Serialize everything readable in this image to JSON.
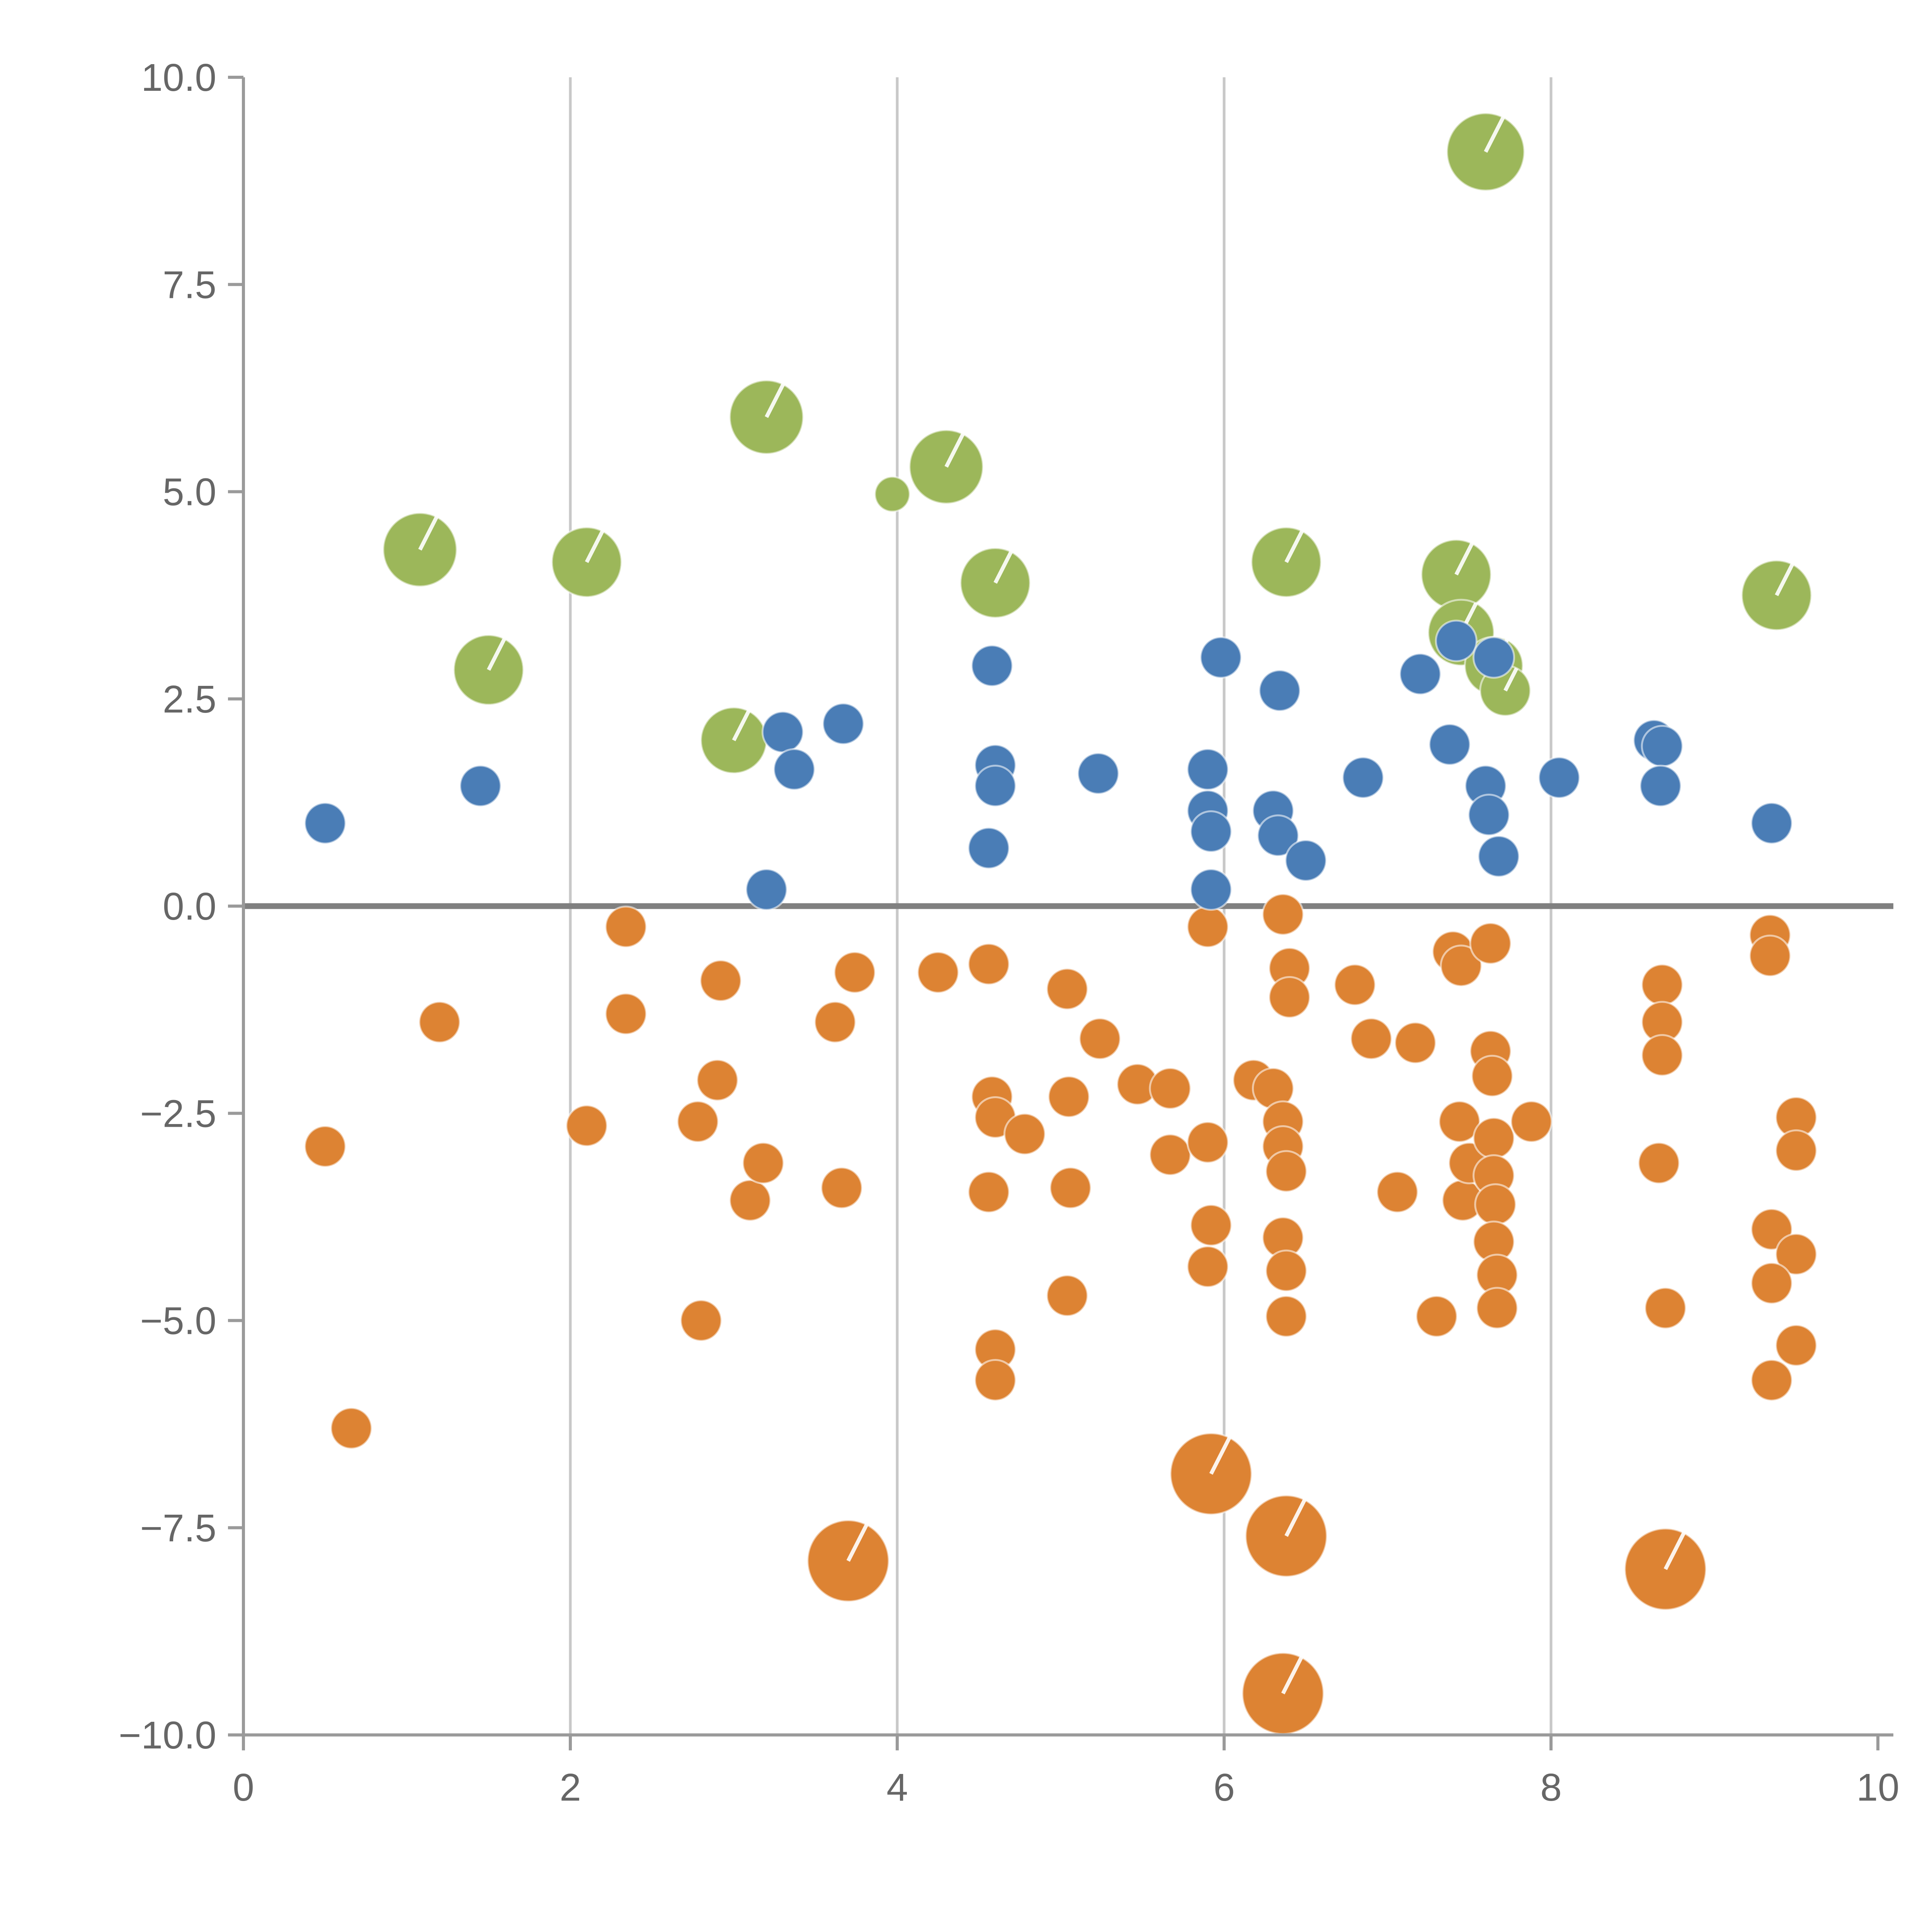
{
  "chart_data": {
    "type": "scatter",
    "title": "",
    "xlabel": "",
    "ylabel": "",
    "xlim": [
      0,
      10
    ],
    "ylim": [
      -10,
      10
    ],
    "x_tick_values": [
      0,
      2,
      4,
      6,
      8,
      10
    ],
    "x_tick_labels": [
      "0",
      "2",
      "4",
      "6",
      "8",
      "10"
    ],
    "y_tick_values": [
      -10,
      -7.5,
      -5,
      -2.5,
      0,
      2.5,
      5,
      7.5,
      10
    ],
    "y_tick_labels": [
      "−10.0",
      "−7.5",
      "−5.0",
      "−2.5",
      "0.0",
      "2.5",
      "5.0",
      "7.5",
      "10.0"
    ],
    "grid": {
      "vertical_x": [
        2,
        4,
        6,
        8
      ],
      "horizontal_y": [],
      "zero_line_y": 0
    },
    "legend": {
      "visible": false
    },
    "style": {
      "background": "#ffffff",
      "gridline_color": "#c8c8c8",
      "zero_line_color": "#808080",
      "spine_color": "#9a9a9a",
      "tick_label_color": "#666666",
      "tick_font_size": 20,
      "notch_color": "#ffffff"
    },
    "series": [
      {
        "name": "green-bubbles",
        "color": "#9cb75a",
        "default_r": 17,
        "notch_min_r": 12,
        "points": [
          [
            7.6,
            9.1,
            20
          ],
          [
            3.2,
            5.9,
            19
          ],
          [
            4.3,
            5.3,
            19
          ],
          [
            3.97,
            4.97,
            9
          ],
          [
            1.08,
            4.3,
            19
          ],
          [
            2.1,
            4.15,
            18
          ],
          [
            4.6,
            3.9,
            18
          ],
          [
            6.38,
            4.15,
            18
          ],
          [
            7.42,
            4.0,
            18
          ],
          [
            9.38,
            3.75,
            18
          ],
          [
            1.5,
            2.85,
            18
          ],
          [
            7.45,
            3.3,
            17
          ],
          [
            7.65,
            2.9,
            15
          ],
          [
            7.72,
            2.6,
            13
          ],
          [
            3.0,
            2.0,
            17
          ]
        ]
      },
      {
        "name": "orange-dots",
        "color": "#dd8333",
        "default_r": 10.5,
        "notch_min_r": 14,
        "points": [
          [
            0.5,
            -2.9
          ],
          [
            0.66,
            -6.3
          ],
          [
            1.2,
            -1.4
          ],
          [
            2.1,
            -2.65
          ],
          [
            2.34,
            -0.25
          ],
          [
            2.34,
            -1.3
          ],
          [
            2.78,
            -2.6
          ],
          [
            2.8,
            -5.0
          ],
          [
            2.9,
            -2.1
          ],
          [
            2.92,
            -0.9
          ],
          [
            3.1,
            -3.55
          ],
          [
            3.18,
            -3.1
          ],
          [
            3.62,
            -1.4
          ],
          [
            3.66,
            -3.4
          ],
          [
            3.7,
            -7.9,
            21
          ],
          [
            3.74,
            -0.8
          ],
          [
            4.25,
            -0.8
          ],
          [
            4.56,
            -0.7
          ],
          [
            4.58,
            -2.3
          ],
          [
            4.6,
            -2.55
          ],
          [
            4.56,
            -3.45
          ],
          [
            4.6,
            -5.35
          ],
          [
            4.6,
            -5.72
          ],
          [
            4.78,
            -2.75
          ],
          [
            5.04,
            -1.0
          ],
          [
            5.05,
            -2.3
          ],
          [
            5.06,
            -3.4
          ],
          [
            5.04,
            -4.7
          ],
          [
            5.24,
            -1.6
          ],
          [
            5.47,
            -2.15
          ],
          [
            5.67,
            -2.2
          ],
          [
            5.67,
            -3.0
          ],
          [
            5.9,
            -0.25
          ],
          [
            5.9,
            -2.85
          ],
          [
            5.92,
            -3.85
          ],
          [
            5.9,
            -4.35
          ],
          [
            5.92,
            -6.85,
            21
          ],
          [
            6.18,
            -2.1
          ],
          [
            6.3,
            -2.2
          ],
          [
            6.36,
            -0.1
          ],
          [
            6.4,
            -0.75
          ],
          [
            6.4,
            -1.1
          ],
          [
            6.36,
            -2.6
          ],
          [
            6.36,
            -2.9
          ],
          [
            6.38,
            -3.2
          ],
          [
            6.36,
            -4.0
          ],
          [
            6.38,
            -4.4
          ],
          [
            6.38,
            -4.95
          ],
          [
            6.38,
            -7.6,
            21
          ],
          [
            6.36,
            -9.5,
            21
          ],
          [
            6.8,
            -0.95
          ],
          [
            6.9,
            -1.6
          ],
          [
            7.06,
            -3.45
          ],
          [
            7.17,
            -1.65
          ],
          [
            7.3,
            -4.95
          ],
          [
            7.4,
            -0.55
          ],
          [
            7.45,
            -0.72
          ],
          [
            7.44,
            -2.6
          ],
          [
            7.46,
            -3.55
          ],
          [
            7.5,
            -3.1
          ],
          [
            7.63,
            -0.45
          ],
          [
            7.63,
            -1.75
          ],
          [
            7.64,
            -2.05
          ],
          [
            7.65,
            -2.8
          ],
          [
            7.65,
            -3.25
          ],
          [
            7.66,
            -3.6
          ],
          [
            7.65,
            -4.05
          ],
          [
            7.67,
            -4.45
          ],
          [
            7.67,
            -4.85
          ],
          [
            7.88,
            -2.6
          ],
          [
            8.68,
            -0.95
          ],
          [
            8.68,
            -1.4
          ],
          [
            8.68,
            -1.8
          ],
          [
            8.66,
            -3.1
          ],
          [
            8.7,
            -4.85
          ],
          [
            8.7,
            -8.0,
            21
          ],
          [
            9.34,
            -0.35
          ],
          [
            9.34,
            -0.6
          ],
          [
            9.5,
            -2.55
          ],
          [
            9.5,
            -2.95
          ],
          [
            9.35,
            -3.9
          ],
          [
            9.5,
            -4.2
          ],
          [
            9.35,
            -4.55
          ],
          [
            9.5,
            -5.3
          ],
          [
            9.35,
            -5.72
          ]
        ]
      },
      {
        "name": "blue-dots",
        "color": "#4a7db6",
        "default_r": 10.5,
        "notch_min_r": 99,
        "points": [
          [
            0.5,
            1.0
          ],
          [
            1.45,
            1.45
          ],
          [
            3.2,
            0.2
          ],
          [
            3.3,
            2.1
          ],
          [
            3.37,
            1.65
          ],
          [
            3.67,
            2.2
          ],
          [
            4.58,
            2.9
          ],
          [
            4.6,
            1.7
          ],
          [
            4.6,
            1.45
          ],
          [
            4.56,
            0.7
          ],
          [
            5.23,
            1.6
          ],
          [
            5.98,
            3.0
          ],
          [
            5.9,
            1.65
          ],
          [
            5.9,
            1.15
          ],
          [
            5.92,
            0.9
          ],
          [
            5.92,
            0.2
          ],
          [
            6.34,
            2.6
          ],
          [
            6.3,
            1.15
          ],
          [
            6.33,
            0.85
          ],
          [
            6.5,
            0.55
          ],
          [
            6.85,
            1.55
          ],
          [
            7.2,
            2.8
          ],
          [
            7.38,
            1.95
          ],
          [
            7.42,
            3.2
          ],
          [
            7.65,
            3.0
          ],
          [
            7.6,
            1.45
          ],
          [
            7.62,
            1.1
          ],
          [
            7.68,
            0.6
          ],
          [
            8.05,
            1.55
          ],
          [
            8.63,
            2.0
          ],
          [
            8.68,
            1.93
          ],
          [
            8.67,
            1.45
          ],
          [
            9.35,
            1.0
          ]
        ]
      }
    ]
  }
}
